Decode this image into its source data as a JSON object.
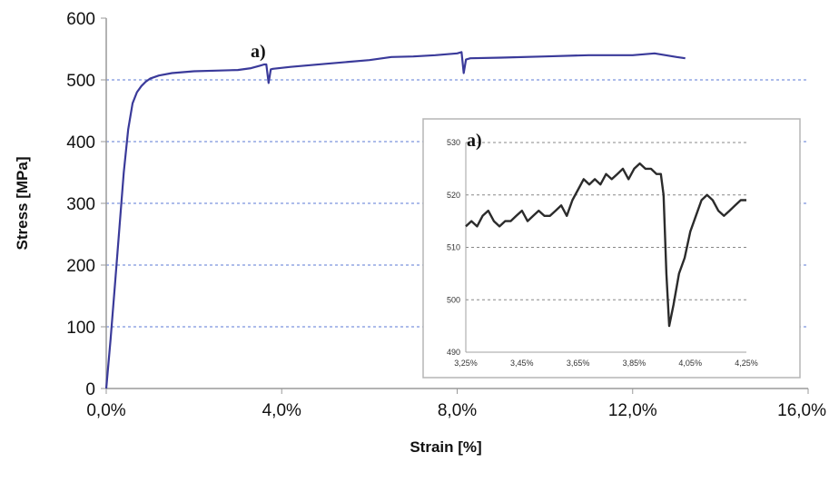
{
  "chart_data": [
    {
      "type": "line",
      "xlabel": "Strain [%]",
      "ylabel": "Stress [MPa]",
      "xlim": [
        0,
        16
      ],
      "ylim": [
        0,
        600
      ],
      "x_ticks": [
        "0,0%",
        "4,0%",
        "8,0%",
        "12,0%",
        "16,0%"
      ],
      "y_ticks": [
        "0",
        "100",
        "200",
        "300",
        "400",
        "500",
        "600"
      ],
      "grid": "horizontal dashed",
      "line_color": "#3a3a9a",
      "annotation": "a)",
      "series": [
        {
          "x": [
            0,
            0.1,
            0.2,
            0.3,
            0.4,
            0.5,
            0.6,
            0.7,
            0.8,
            0.9,
            1.0,
            1.2,
            1.5,
            2.0,
            2.5,
            3.0,
            3.3,
            3.5,
            3.6,
            3.65,
            3.7,
            3.75,
            3.8,
            4.2,
            5.0,
            6.0,
            6.5,
            7.0,
            7.5,
            8.0,
            8.1,
            8.15,
            8.2,
            8.3,
            9.0,
            10.0,
            11.0,
            12.0,
            12.5,
            13.0,
            13.2
          ],
          "y": [
            0,
            80,
            170,
            260,
            350,
            420,
            462,
            480,
            490,
            497,
            502,
            507,
            511,
            514,
            515,
            516,
            519,
            523,
            525,
            525,
            495,
            517,
            518,
            521,
            526,
            532,
            537,
            538,
            540,
            543,
            545,
            511,
            533,
            535,
            536,
            538,
            540,
            540,
            543,
            537,
            535
          ]
        }
      ]
    },
    {
      "type": "line",
      "annotation": "a)",
      "xlim": [
        3.25,
        4.25
      ],
      "ylim": [
        490,
        530
      ],
      "x_ticks": [
        "3,25%",
        "3,45%",
        "3,65%",
        "3,85%",
        "4,05%",
        "4,25%"
      ],
      "y_ticks": [
        "490",
        "500",
        "510",
        "520",
        "530"
      ],
      "grid": "horizontal dashed",
      "line_color": "#2b2b2b",
      "series": [
        {
          "x": [
            3.25,
            3.27,
            3.29,
            3.31,
            3.33,
            3.35,
            3.37,
            3.39,
            3.41,
            3.43,
            3.45,
            3.47,
            3.49,
            3.51,
            3.53,
            3.55,
            3.57,
            3.59,
            3.61,
            3.63,
            3.65,
            3.67,
            3.69,
            3.71,
            3.73,
            3.75,
            3.77,
            3.79,
            3.81,
            3.83,
            3.85,
            3.87,
            3.89,
            3.91,
            3.93,
            3.945,
            3.955,
            3.965,
            3.975,
            3.99,
            4.01,
            4.03,
            4.05,
            4.07,
            4.09,
            4.11,
            4.13,
            4.15,
            4.17,
            4.19,
            4.21,
            4.23,
            4.25
          ],
          "y": [
            514,
            515,
            514,
            516,
            517,
            515,
            514,
            515,
            515,
            516,
            517,
            515,
            516,
            517,
            516,
            516,
            517,
            518,
            516,
            519,
            521,
            523,
            522,
            523,
            522,
            524,
            523,
            524,
            525,
            523,
            525,
            526,
            525,
            525,
            524,
            524,
            520,
            505,
            495,
            499,
            505,
            508,
            513,
            516,
            519,
            520,
            519,
            517,
            516,
            517,
            518,
            519,
            519
          ]
        }
      ]
    }
  ]
}
